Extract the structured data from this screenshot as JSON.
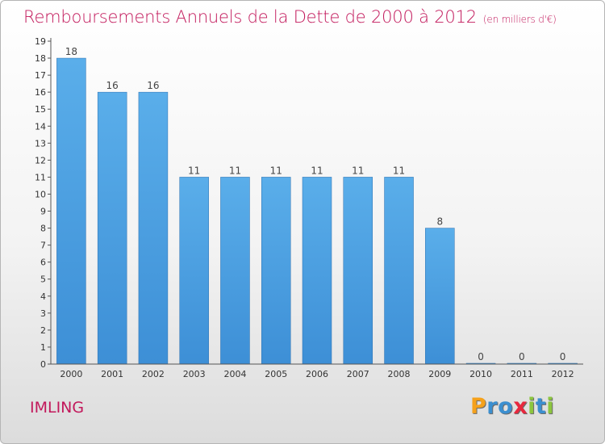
{
  "chart_data": {
    "type": "bar",
    "title": "Remboursements Annuels de la Dette de 2000 à 2012",
    "unit": "(en milliers d'€)",
    "categories": [
      "2000",
      "2001",
      "2002",
      "2003",
      "2004",
      "2005",
      "2006",
      "2007",
      "2008",
      "2009",
      "2010",
      "2011",
      "2012"
    ],
    "values": [
      18,
      16,
      16,
      11,
      11,
      11,
      11,
      11,
      11,
      8,
      0,
      0,
      0
    ],
    "ylim": [
      0,
      19
    ],
    "yticks": [
      0,
      1,
      2,
      3,
      4,
      5,
      6,
      7,
      8,
      9,
      10,
      11,
      12,
      13,
      14,
      15,
      16,
      17,
      18,
      19
    ],
    "grid": false,
    "bar_color": "#3d8fd6",
    "bar_color_light": "#5aaeea",
    "title_color": "#c2185b"
  },
  "footer": {
    "place": "IMLING",
    "logo_letters": [
      "P",
      "r",
      "o",
      "x",
      "i",
      "t",
      "i"
    ],
    "logo_colors": [
      "#f5a11b",
      "#3b8fd0",
      "#3b8fd0",
      "#e8283e",
      "#8cc63f",
      "#3b8fd0",
      "#8cc63f"
    ]
  }
}
